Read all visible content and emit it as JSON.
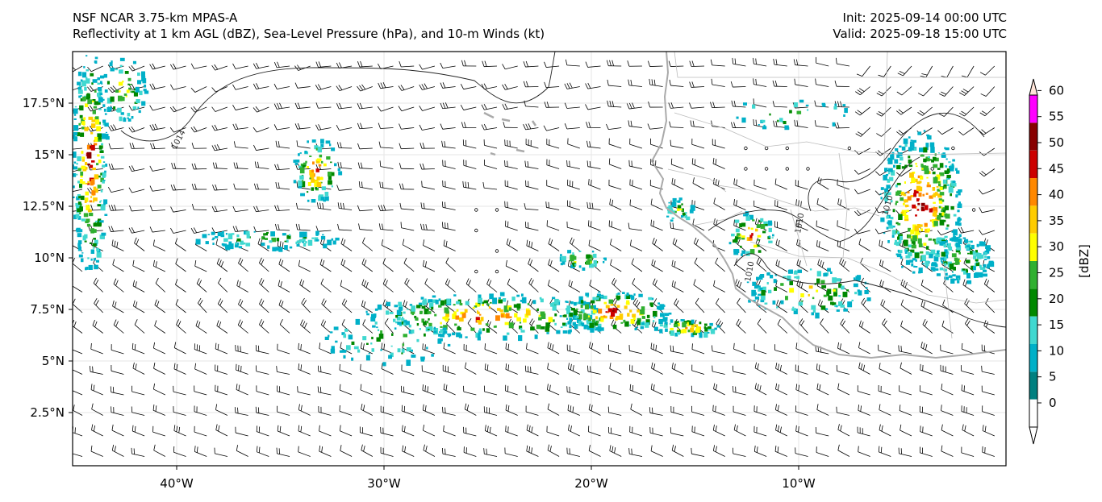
{
  "header": {
    "model_line": "NSF NCAR 3.75-km MPAS-A",
    "field_line": "Reflectivity at 1 km AGL (dBZ), Sea-Level Pressure (hPa), and 10-m Winds (kt)",
    "init_line": "Init: 2025-09-14 00:00 UTC",
    "valid_line": "Valid: 2025-09-18 15:00 UTC"
  },
  "map": {
    "lon_ticks": [
      "40°W",
      "30°W",
      "20°W",
      "10°W"
    ],
    "lat_ticks": [
      "17.5°N",
      "15°N",
      "12.5°N",
      "10°N",
      "7.5°N",
      "5°N",
      "2.5°N"
    ],
    "isobar_labels": [
      "1014",
      "1010",
      "1010",
      "1010"
    ]
  },
  "colorbar": {
    "unit_label": "[dBZ]",
    "ticks": [
      "0",
      "5",
      "10",
      "15",
      "20",
      "25",
      "30",
      "35",
      "40",
      "45",
      "50",
      "55",
      "60"
    ],
    "colors": [
      "#ffffff",
      "#008080",
      "#00b0c8",
      "#40d8d0",
      "#008800",
      "#30b030",
      "#ffff00",
      "#ffcc00",
      "#ff8800",
      "#cc0000",
      "#880000",
      "#ff00ff",
      "#ffe4d8"
    ]
  },
  "colors": {
    "coast": "#aaaaaa",
    "isobar": "#222222",
    "barb": "#000000",
    "grid": "#e6e6e6"
  }
}
